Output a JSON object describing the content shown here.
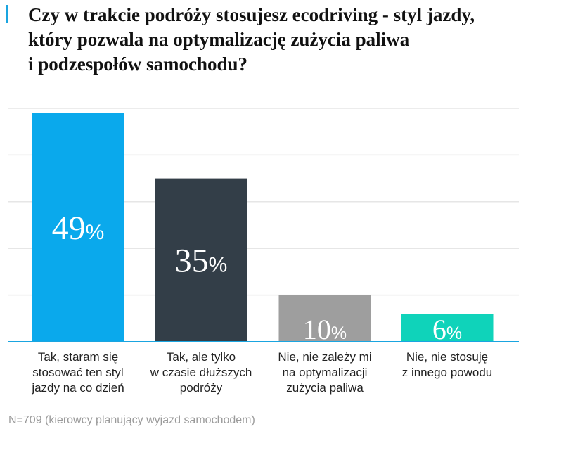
{
  "title": "Czy w trakcie podróży stosujesz ecodriving - styl jazdy,\nktóry pozwala na optymalizację zużycia paliwa\ni podzespołów samochodu?",
  "note": "N=709 (kierowcy planujący wyjazd samochodem)",
  "colors": {
    "accent": "#1aa5e0",
    "grid": "#e6e6e6",
    "baseline": "#1aa5e0"
  },
  "chart_data": {
    "type": "bar",
    "title": "Czy w trakcie podróży stosujesz ecodriving - styl jazdy, który pozwala na optymalizację zużycia paliwa i podzespołów samochodu?",
    "categories": [
      "Tak, staram się\nstosować ten styl\njazdy na co dzień",
      "Tak, ale tylko\nw czasie dłuższych\npodróży",
      "Nie, nie zależy mi\nna optymalizacji\nzużycia paliwa",
      "Nie, nie stosuję\nz innego powodu"
    ],
    "values": [
      49,
      35,
      10,
      6
    ],
    "value_labels": [
      "49",
      "35",
      "10",
      "6"
    ],
    "unit": "%",
    "colors": [
      "#0aa9ec",
      "#333e48",
      "#9e9e9e",
      "#0fd3ba"
    ],
    "ylim": [
      0,
      50
    ],
    "grid": true,
    "legend": "none",
    "xlabel": "",
    "ylabel": ""
  }
}
